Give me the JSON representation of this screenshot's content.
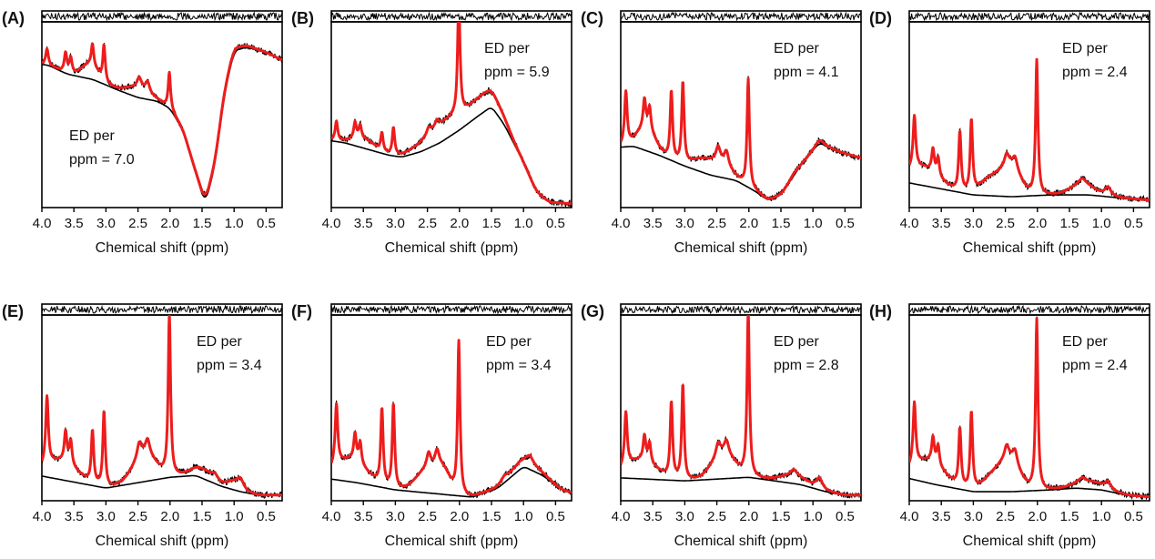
{
  "figure": {
    "xlabel": "Chemical shift (ppm)",
    "xticks": [
      "4.0",
      "3.5",
      "3.0",
      "2.5",
      "2.0",
      "1.5",
      "1.0",
      "0.5"
    ],
    "colors": {
      "fit": "#ee1c1c",
      "data": "#000000",
      "baseline": "#000000"
    }
  },
  "chart_data": [
    {
      "panel": "(A)",
      "type": "line",
      "annotation": [
        "ED per",
        "ppm = 7.0"
      ],
      "xlim": [
        4.0,
        0.25
      ],
      "x_reversed": true
    },
    {
      "panel": "(B)",
      "type": "line",
      "annotation": [
        "ED per",
        "ppm = 5.9"
      ],
      "xlim": [
        4.0,
        0.25
      ],
      "x_reversed": true
    },
    {
      "panel": "(C)",
      "type": "line",
      "annotation": [
        "ED per",
        "ppm = 4.1"
      ],
      "xlim": [
        4.0,
        0.25
      ],
      "x_reversed": true
    },
    {
      "panel": "(D)",
      "type": "line",
      "annotation": [
        "ED per",
        "ppm = 2.4"
      ],
      "xlim": [
        4.0,
        0.25
      ],
      "x_reversed": true
    },
    {
      "panel": "(E)",
      "type": "line",
      "annotation": [
        "ED per",
        "ppm = 3.4"
      ],
      "xlim": [
        4.0,
        0.25
      ],
      "x_reversed": true
    },
    {
      "panel": "(F)",
      "type": "line",
      "annotation": [
        "ED per",
        "ppm = 3.4"
      ],
      "xlim": [
        4.0,
        0.25
      ],
      "x_reversed": true
    },
    {
      "panel": "(G)",
      "type": "line",
      "annotation": [
        "ED per",
        "ppm = 2.8"
      ],
      "xlim": [
        4.0,
        0.25
      ],
      "x_reversed": true
    },
    {
      "panel": "(H)",
      "type": "line",
      "annotation": [
        "ED per",
        "ppm = 2.4"
      ],
      "xlim": [
        4.0,
        0.25
      ],
      "x_reversed": true
    }
  ]
}
